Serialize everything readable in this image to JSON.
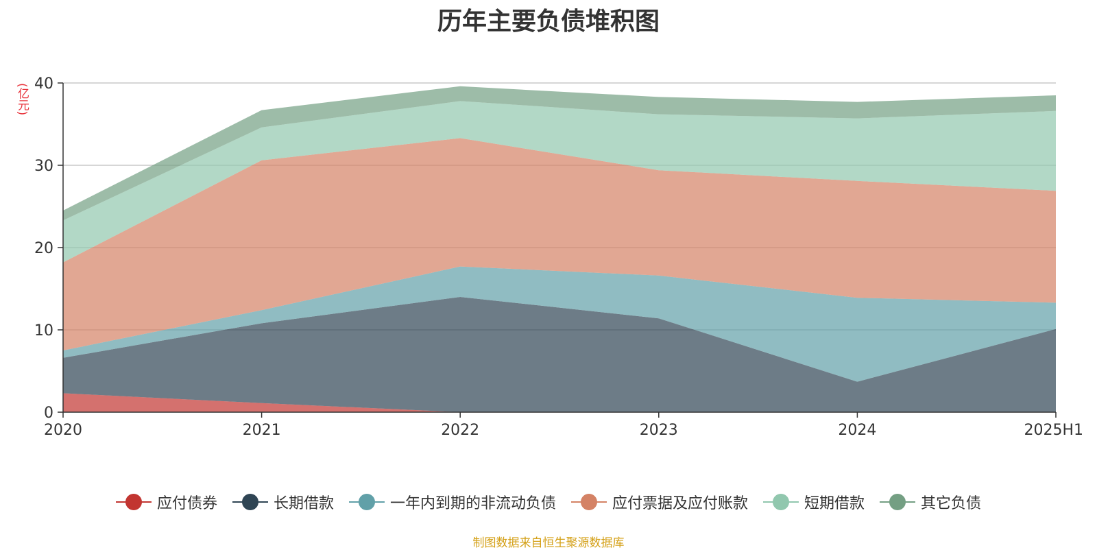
{
  "chart_data": {
    "type": "area",
    "stacked": true,
    "title": "历年主要负债堆积图",
    "ylabel": "(亿元)",
    "categories": [
      "2020",
      "2021",
      "2022",
      "2023",
      "2024",
      "2025H1"
    ],
    "ylim": [
      0,
      40
    ],
    "yticks": [
      0,
      10,
      20,
      30,
      40
    ],
    "grid": true,
    "legend_position": "bottom",
    "series": [
      {
        "name": "应付债券",
        "color": "#c23531",
        "values": [
          2.3,
          1.1,
          0,
          0,
          0,
          0
        ]
      },
      {
        "name": "长期借款",
        "color": "#2f4554",
        "values": [
          4.3,
          9.7,
          14.0,
          11.4,
          3.7,
          10.1
        ]
      },
      {
        "name": "一年内到期的非流动负债",
        "color": "#61a0a8",
        "values": [
          0.9,
          1.6,
          3.7,
          5.2,
          10.2,
          3.2
        ]
      },
      {
        "name": "应付票据及应付账款",
        "color": "#d48265",
        "values": [
          10.7,
          18.2,
          15.6,
          12.8,
          14.2,
          13.6
        ]
      },
      {
        "name": "短期借款",
        "color": "#91c7ae",
        "values": [
          5.1,
          4.0,
          4.5,
          6.8,
          7.6,
          9.7
        ]
      },
      {
        "name": "其它负债",
        "color": "#749f83",
        "values": [
          1.2,
          2.1,
          1.8,
          2.1,
          2.0,
          1.9
        ]
      }
    ],
    "source_note": "制图数据来自恒生聚源数据库"
  }
}
